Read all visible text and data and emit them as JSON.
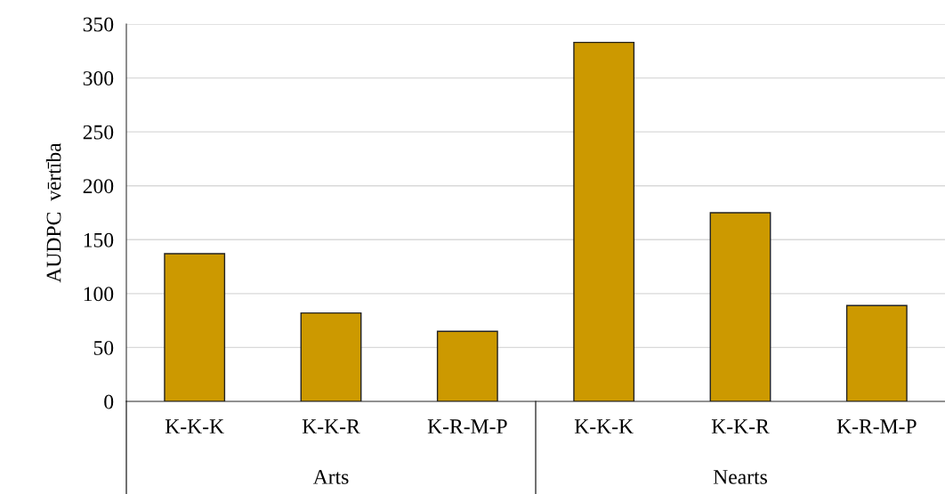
{
  "chart_data": {
    "type": "bar",
    "ylabel": "AUDPC  vērtība",
    "categories": [
      "K-K-K",
      "K-K-R",
      "K-R-M-P",
      "K-K-K",
      "K-K-R",
      "K-R-M-P"
    ],
    "values": [
      137,
      82,
      65,
      333,
      175,
      89
    ],
    "color": "#cc9900",
    "ylim": [
      0,
      350
    ],
    "yticks": [
      0,
      50,
      100,
      150,
      200,
      250,
      300,
      350
    ],
    "grid": "y",
    "annotations": [
      "Arts",
      "Nearts"
    ]
  }
}
